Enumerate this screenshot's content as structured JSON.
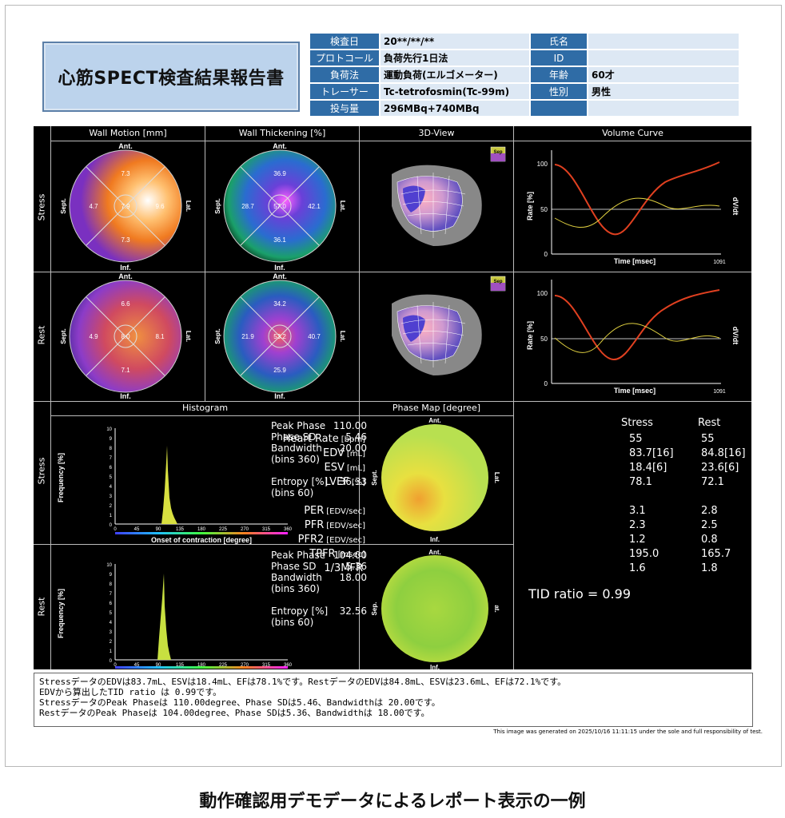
{
  "report_title": "心筋SPECT検査結果報告書",
  "info": {
    "rows": [
      {
        "l1": "検査日",
        "v1": "20**/**/**",
        "l2": "氏名",
        "v2": ""
      },
      {
        "l1": "プロトコール",
        "v1": "負荷先行1日法",
        "l2": "ID",
        "v2": ""
      },
      {
        "l1": "負荷法",
        "v1": "運動負荷(エルゴメーター)",
        "l2": "年齢",
        "v2": "60才"
      },
      {
        "l1": "トレーサー",
        "v1": "Tc-tetrofosmin(Tc-99m)",
        "l2": "性別",
        "v2": "男性"
      },
      {
        "l1": "投与量",
        "v1": "296MBq+740MBq",
        "l2": "",
        "v2": ""
      }
    ]
  },
  "headers": {
    "wall_motion": "Wall Motion [mm]",
    "wall_thickening": "Wall Thickening [%]",
    "view3d": "3D-View",
    "volume_curve": "Volume Curve",
    "histogram": "Histogram",
    "phase_map": "Phase Map [degree]"
  },
  "row_labels": {
    "stress": "Stress",
    "rest": "Rest"
  },
  "polar_labels": {
    "ant": "Ant.",
    "inf": "Inf.",
    "sept": "Sept.",
    "lat": "Lat.",
    "sep": "Sep.",
    "at": "at.",
    "sep_cube": "Sep"
  },
  "wall_motion": {
    "stress": {
      "ant": "7.3",
      "center": "7.9",
      "sept": "4.7",
      "lat": "9.6",
      "inf": "7.3"
    },
    "rest": {
      "ant": "6.6",
      "center": "8.0",
      "sept": "4.9",
      "lat": "8.1",
      "inf": "7.1"
    }
  },
  "wall_thickening": {
    "stress": {
      "ant": "36.9",
      "center": "57.0",
      "sept": "28.7",
      "lat": "42.1",
      "inf": "36.1"
    },
    "rest": {
      "ant": "34.2",
      "center": "53.2",
      "sept": "21.9",
      "lat": "40.7",
      "inf": "25.9"
    }
  },
  "volume_curve": {
    "ylabel": "Rate [%]",
    "xlabel": "Time [msec]",
    "right_label": "dV/dt",
    "xmax": "1091",
    "yticks": [
      "100",
      "50",
      "0"
    ]
  },
  "histogram": {
    "ylabel": "Frequency [%]",
    "xlabel": "Onset of contraction [degree]",
    "yticks": [
      "10",
      "9",
      "8",
      "7",
      "6",
      "5",
      "4",
      "3",
      "2",
      "1",
      "0"
    ],
    "xticks": [
      "0",
      "45",
      "90",
      "135",
      "180",
      "225",
      "270",
      "315",
      "360"
    ],
    "stress": {
      "peak_label": "Peak Phase",
      "peak": "110.00",
      "sd_label": "Phase SD",
      "sd": "5.46",
      "bw_label": "Bandwidth",
      "bw": "20.00",
      "bins1": "(bins 360)",
      "ent_label": "Entropy [%]",
      "ent": "36.33",
      "bins2": "(bins 60)"
    },
    "rest": {
      "peak_label": "Peak Phase",
      "peak": "104.00",
      "sd_label": "Phase SD",
      "sd": "5.36",
      "bw_label": "Bandwidth",
      "bw": "18.00",
      "bins1": "(bins 360)",
      "ent_label": "Entropy [%]",
      "ent": "32.56",
      "bins2": "(bins 60)"
    }
  },
  "results": {
    "col_stress": "Stress",
    "col_rest": "Rest",
    "rows": [
      {
        "label": "Heart Rate",
        "unit": "[bpm]",
        "stress": "55",
        "rest": "55"
      },
      {
        "label": "EDV",
        "unit": "[mL]",
        "stress": "83.7[16]",
        "rest": "84.8[16]"
      },
      {
        "label": "ESV",
        "unit": "[mL]",
        "stress": "18.4[6]",
        "rest": "23.6[6]"
      },
      {
        "label": "LVEF",
        "unit": "[%]",
        "stress": "78.1",
        "rest": "72.1"
      },
      {
        "label": "PER",
        "unit": "[EDV/sec]",
        "stress": "3.1",
        "rest": "2.8"
      },
      {
        "label": "PFR",
        "unit": "[EDV/sec]",
        "stress": "2.3",
        "rest": "2.5"
      },
      {
        "label": "PFR2",
        "unit": "[EDV/sec]",
        "stress": "1.2",
        "rest": "0.8"
      },
      {
        "label": "TPFR",
        "unit": "[msec]",
        "stress": "195.0",
        "rest": "165.7"
      },
      {
        "label": "1/3MFR",
        "unit": "",
        "stress": "1.6",
        "rest": "1.8"
      }
    ],
    "tid": "TID ratio = 0.99"
  },
  "notes": [
    "StressデータのEDVは83.7mL、ESVは18.4mL、EFは78.1%です。RestデータのEDVは84.8mL、ESVは23.6mL、EFは72.1%です。",
    "EDVから算出したTID ratio は 0.99です。",
    "StressデータのPeak Phaseは 110.00degree、Phase SDは5.46、Bandwidthは 20.00です。",
    "RestデータのPeak Phaseは 104.00degree、Phase SDは5.36、Bandwidthは 18.00です。"
  ],
  "footer": "This image was generated on 2025/10/16 11:11:15 under the sole and full responsibility of test.",
  "caption": "動作確認用デモデータによるレポート表示の一例"
}
